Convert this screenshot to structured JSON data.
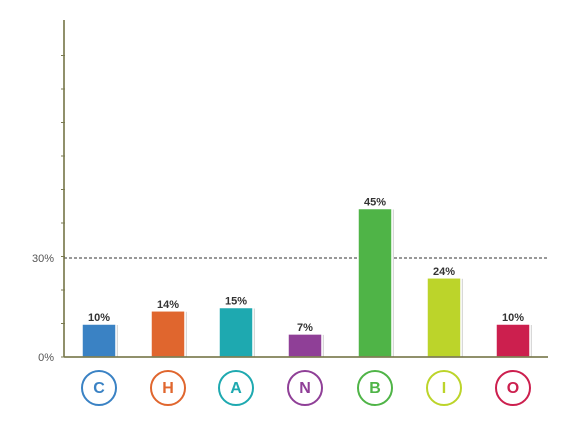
{
  "chart_data": {
    "type": "bar",
    "categories": [
      "C",
      "H",
      "A",
      "N",
      "B",
      "I",
      "O"
    ],
    "values": [
      10,
      14,
      15,
      7,
      45,
      24,
      10
    ],
    "value_labels": [
      "10%",
      "14%",
      "15%",
      "7%",
      "45%",
      "24%",
      "10%"
    ],
    "colors": [
      "#3a82c4",
      "#e0662e",
      "#1ea9b0",
      "#8f3f97",
      "#4fb447",
      "#bcd42a",
      "#cc1f4e"
    ],
    "ylim": [
      0,
      100
    ],
    "yticks": [
      0,
      30
    ],
    "ytick_labels": [
      "0%",
      "30%"
    ],
    "reference_line": 30,
    "title": "",
    "xlabel": "",
    "ylabel": ""
  }
}
